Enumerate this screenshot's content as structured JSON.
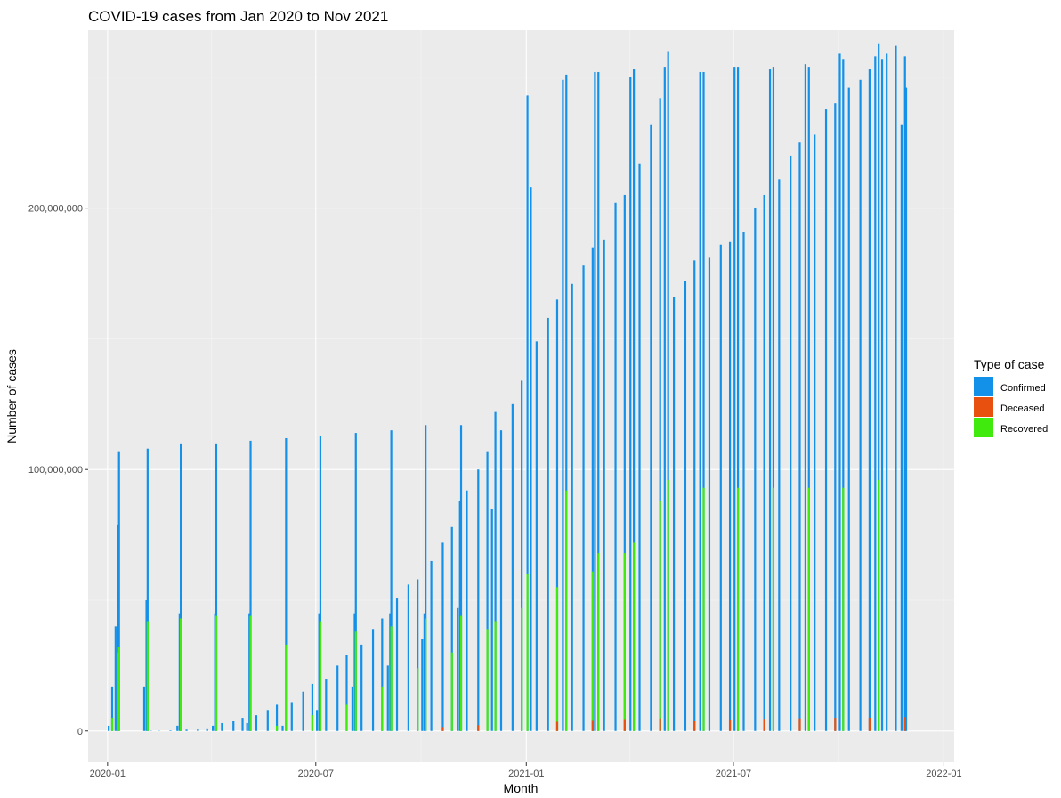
{
  "chart_data": {
    "type": "bar",
    "stacked": true,
    "title": "COVID-19 cases from Jan 2020 to Nov 2021",
    "xlabel": "Month",
    "ylabel": "Number of cases",
    "xlim": [
      "2019-12-15",
      "2022-01-10"
    ],
    "ylim": [
      -12000000,
      268000000
    ],
    "x_ticks": [
      {
        "date": "2020-01-01",
        "label": "2020-01"
      },
      {
        "date": "2020-07-01",
        "label": "2020-07"
      },
      {
        "date": "2021-01-01",
        "label": "2021-01"
      },
      {
        "date": "2021-07-01",
        "label": "2021-07"
      },
      {
        "date": "2022-01-01",
        "label": "2022-01"
      }
    ],
    "y_ticks": [
      {
        "value": 0,
        "label": "0"
      },
      {
        "value": 100000000,
        "label": "100,000,000"
      },
      {
        "value": 200000000,
        "label": "200,000,000"
      }
    ],
    "grid": true,
    "legend": {
      "title": "Type of case",
      "position": "right",
      "entries": [
        {
          "name": "Confirmed",
          "color": "#1390E8"
        },
        {
          "name": "Deceased",
          "color": "#E8500F"
        },
        {
          "name": "Recovered",
          "color": "#3FEA0C"
        }
      ]
    },
    "note": "Each month's bars are drawn at the month's day-of-month positions; values read off the axis approximately.",
    "series": [
      {
        "name": "Confirmed",
        "points": [
          [
            "2020-01-02",
            2000000
          ],
          [
            "2020-01-05",
            17000000
          ],
          [
            "2020-01-08",
            40000000
          ],
          [
            "2020-01-10",
            79000000
          ],
          [
            "2020-01-11",
            107000000
          ],
          [
            "2020-02-02",
            17000000
          ],
          [
            "2020-02-04",
            50000000
          ],
          [
            "2020-02-05",
            108000000
          ],
          [
            "2020-02-08",
            100000
          ],
          [
            "2020-02-15",
            100000
          ],
          [
            "2020-02-25",
            200000
          ],
          [
            "2020-03-02",
            2000000
          ],
          [
            "2020-03-04",
            45000000
          ],
          [
            "2020-03-05",
            110000000
          ],
          [
            "2020-03-10",
            500000
          ],
          [
            "2020-03-20",
            700000
          ],
          [
            "2020-03-28",
            1000000
          ],
          [
            "2020-04-02",
            2000000
          ],
          [
            "2020-04-04",
            45000000
          ],
          [
            "2020-04-05",
            110000000
          ],
          [
            "2020-04-10",
            3000000
          ],
          [
            "2020-04-20",
            4000000
          ],
          [
            "2020-04-28",
            5000000
          ],
          [
            "2020-05-02",
            3000000
          ],
          [
            "2020-05-04",
            45000000
          ],
          [
            "2020-05-05",
            111000000
          ],
          [
            "2020-05-10",
            6000000
          ],
          [
            "2020-05-20",
            8000000
          ],
          [
            "2020-05-28",
            10000000
          ],
          [
            "2020-06-02",
            2000000
          ],
          [
            "2020-06-05",
            112000000
          ],
          [
            "2020-06-10",
            11000000
          ],
          [
            "2020-06-20",
            15000000
          ],
          [
            "2020-06-28",
            18000000
          ],
          [
            "2020-07-02",
            8000000
          ],
          [
            "2020-07-04",
            45000000
          ],
          [
            "2020-07-05",
            113000000
          ],
          [
            "2020-07-10",
            20000000
          ],
          [
            "2020-07-20",
            25000000
          ],
          [
            "2020-07-28",
            29000000
          ],
          [
            "2020-08-02",
            17000000
          ],
          [
            "2020-08-04",
            45000000
          ],
          [
            "2020-08-05",
            114000000
          ],
          [
            "2020-08-10",
            33000000
          ],
          [
            "2020-08-20",
            39000000
          ],
          [
            "2020-08-28",
            43000000
          ],
          [
            "2020-09-02",
            25000000
          ],
          [
            "2020-09-04",
            45000000
          ],
          [
            "2020-09-05",
            115000000
          ],
          [
            "2020-09-10",
            51000000
          ],
          [
            "2020-09-20",
            56000000
          ],
          [
            "2020-09-28",
            58000000
          ],
          [
            "2020-10-02",
            35000000
          ],
          [
            "2020-10-04",
            45000000
          ],
          [
            "2020-10-05",
            117000000
          ],
          [
            "2020-10-10",
            65000000
          ],
          [
            "2020-10-20",
            72000000
          ],
          [
            "2020-10-28",
            78000000
          ],
          [
            "2020-11-02",
            47000000
          ],
          [
            "2020-11-04",
            88000000
          ],
          [
            "2020-11-05",
            117000000
          ],
          [
            "2020-11-10",
            92000000
          ],
          [
            "2020-11-20",
            100000000
          ],
          [
            "2020-11-28",
            107000000
          ],
          [
            "2020-12-02",
            85000000
          ],
          [
            "2020-12-05",
            122000000
          ],
          [
            "2020-12-10",
            115000000
          ],
          [
            "2020-12-20",
            125000000
          ],
          [
            "2020-12-28",
            134000000
          ],
          [
            "2021-01-02",
            243000000
          ],
          [
            "2021-01-05",
            208000000
          ],
          [
            "2021-01-10",
            149000000
          ],
          [
            "2021-01-20",
            158000000
          ],
          [
            "2021-01-28",
            165000000
          ],
          [
            "2021-02-02",
            249000000
          ],
          [
            "2021-02-05",
            251000000
          ],
          [
            "2021-02-10",
            171000000
          ],
          [
            "2021-02-20",
            178000000
          ],
          [
            "2021-02-28",
            185000000
          ],
          [
            "2021-03-02",
            252000000
          ],
          [
            "2021-03-05",
            252000000
          ],
          [
            "2021-03-10",
            188000000
          ],
          [
            "2021-03-20",
            202000000
          ],
          [
            "2021-03-28",
            205000000
          ],
          [
            "2021-04-02",
            250000000
          ],
          [
            "2021-04-05",
            253000000
          ],
          [
            "2021-04-10",
            217000000
          ],
          [
            "2021-04-20",
            232000000
          ],
          [
            "2021-04-28",
            242000000
          ],
          [
            "2021-05-02",
            254000000
          ],
          [
            "2021-05-05",
            260000000
          ],
          [
            "2021-05-10",
            166000000
          ],
          [
            "2021-05-20",
            172000000
          ],
          [
            "2021-05-28",
            180000000
          ],
          [
            "2021-06-02",
            252000000
          ],
          [
            "2021-06-05",
            252000000
          ],
          [
            "2021-06-10",
            181000000
          ],
          [
            "2021-06-20",
            186000000
          ],
          [
            "2021-06-28",
            187000000
          ],
          [
            "2021-07-02",
            254000000
          ],
          [
            "2021-07-05",
            254000000
          ],
          [
            "2021-07-10",
            191000000
          ],
          [
            "2021-07-20",
            200000000
          ],
          [
            "2021-07-28",
            205000000
          ],
          [
            "2021-08-02",
            253000000
          ],
          [
            "2021-08-05",
            254000000
          ],
          [
            "2021-08-10",
            211000000
          ],
          [
            "2021-08-20",
            220000000
          ],
          [
            "2021-08-28",
            225000000
          ],
          [
            "2021-09-02",
            255000000
          ],
          [
            "2021-09-05",
            254000000
          ],
          [
            "2021-09-10",
            228000000
          ],
          [
            "2021-09-20",
            238000000
          ],
          [
            "2021-09-28",
            240000000
          ],
          [
            "2021-10-02",
            259000000
          ],
          [
            "2021-10-05",
            257000000
          ],
          [
            "2021-10-10",
            246000000
          ],
          [
            "2021-10-20",
            249000000
          ],
          [
            "2021-10-28",
            253000000
          ],
          [
            "2021-11-02",
            258000000
          ],
          [
            "2021-11-05",
            263000000
          ],
          [
            "2021-11-08",
            257000000
          ],
          [
            "2021-11-12",
            259000000
          ],
          [
            "2021-11-20",
            262000000
          ],
          [
            "2021-11-25",
            232000000
          ],
          [
            "2021-11-28",
            258000000
          ],
          [
            "2021-11-29",
            246000000
          ]
        ]
      },
      {
        "name": "Deceased",
        "points": [
          [
            "2020-10-20",
            1500000
          ],
          [
            "2020-11-20",
            2200000
          ],
          [
            "2021-01-28",
            3500000
          ],
          [
            "2021-02-28",
            4200000
          ],
          [
            "2021-03-28",
            4500000
          ],
          [
            "2021-04-28",
            4800000
          ],
          [
            "2021-05-28",
            3800000
          ],
          [
            "2021-06-28",
            4400000
          ],
          [
            "2021-07-28",
            4600000
          ],
          [
            "2021-08-28",
            4800000
          ],
          [
            "2021-09-28",
            5000000
          ],
          [
            "2021-10-28",
            5000000
          ],
          [
            "2021-11-28",
            5300000
          ]
        ]
      },
      {
        "name": "Recovered",
        "points": [
          [
            "2020-01-05",
            5000000
          ],
          [
            "2020-01-10",
            30000000
          ],
          [
            "2020-01-11",
            32000000
          ],
          [
            "2020-02-05",
            42000000
          ],
          [
            "2020-03-05",
            43000000
          ],
          [
            "2020-04-05",
            44000000
          ],
          [
            "2020-05-05",
            44000000
          ],
          [
            "2020-05-28",
            2000000
          ],
          [
            "2020-06-05",
            33000000
          ],
          [
            "2020-06-28",
            6000000
          ],
          [
            "2020-07-05",
            42000000
          ],
          [
            "2020-07-28",
            10000000
          ],
          [
            "2020-08-05",
            38000000
          ],
          [
            "2020-08-28",
            17000000
          ],
          [
            "2020-09-05",
            40000000
          ],
          [
            "2020-09-28",
            24000000
          ],
          [
            "2020-10-05",
            43000000
          ],
          [
            "2020-10-28",
            30000000
          ],
          [
            "2020-11-05",
            44000000
          ],
          [
            "2020-11-28",
            39000000
          ],
          [
            "2020-12-05",
            42000000
          ],
          [
            "2020-12-28",
            47000000
          ],
          [
            "2021-01-02",
            60000000
          ],
          [
            "2021-01-28",
            55000000
          ],
          [
            "2021-02-05",
            92000000
          ],
          [
            "2021-02-28",
            61000000
          ],
          [
            "2021-03-05",
            68000000
          ],
          [
            "2021-03-28",
            68000000
          ],
          [
            "2021-04-05",
            72000000
          ],
          [
            "2021-04-28",
            88000000
          ],
          [
            "2021-05-05",
            96000000
          ],
          [
            "2021-05-28",
            0
          ],
          [
            "2021-06-05",
            93000000
          ],
          [
            "2021-07-05",
            93000000
          ],
          [
            "2021-08-05",
            93000000
          ],
          [
            "2021-09-05",
            93000000
          ],
          [
            "2021-10-05",
            93000000
          ],
          [
            "2021-11-05",
            96000000
          ],
          [
            "2021-11-28",
            0
          ]
        ]
      }
    ]
  }
}
